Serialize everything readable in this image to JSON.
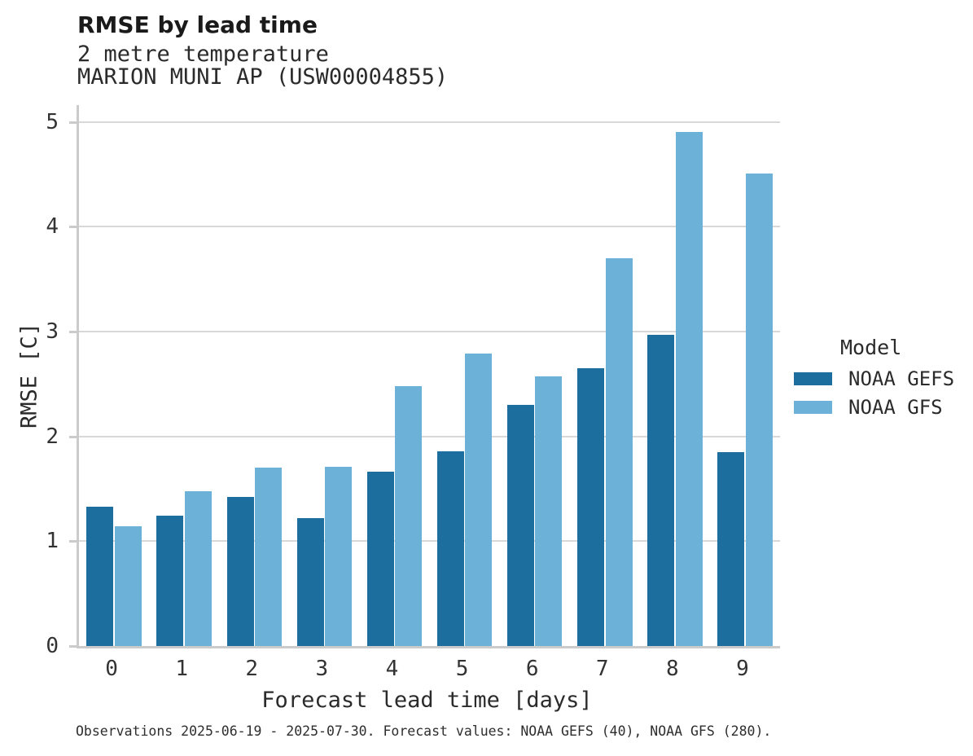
{
  "header": {
    "title": "RMSE by lead time",
    "subtitle_line1": "2 metre temperature",
    "subtitle_line2": "MARION MUNI AP (USW00004855)"
  },
  "chart_data": {
    "type": "bar",
    "title": "RMSE by lead time",
    "subtitle": [
      "2 metre temperature",
      "MARION MUNI AP (USW00004855)"
    ],
    "categories": [
      "0",
      "1",
      "2",
      "3",
      "4",
      "5",
      "6",
      "7",
      "8",
      "9"
    ],
    "series": [
      {
        "name": "NOAA GEFS",
        "color": "#1b6e9e",
        "values": [
          1.33,
          1.24,
          1.42,
          1.22,
          1.66,
          1.86,
          2.3,
          2.65,
          2.97,
          1.85
        ]
      },
      {
        "name": "NOAA GFS",
        "color": "#6cb1d8",
        "values": [
          1.14,
          1.48,
          1.7,
          1.71,
          2.48,
          2.79,
          2.57,
          3.7,
          4.9,
          4.51
        ]
      }
    ],
    "xlabel": "Forecast lead time [days]",
    "ylabel": "RMSE [C]",
    "ylim": [
      0,
      5.16
    ],
    "yticks": [
      0,
      1,
      2,
      3,
      4,
      5
    ],
    "grid": "horizontal",
    "legend_position": "right"
  },
  "legend": {
    "title": "Model",
    "entries": [
      {
        "label": "NOAA GEFS",
        "color": "#1b6e9e"
      },
      {
        "label": "NOAA GFS",
        "color": "#6cb1d8"
      }
    ]
  },
  "footer": {
    "note": "Observations 2025-06-19 - 2025-07-30. Forecast values: NOAA GEFS (40), NOAA GFS (280)."
  },
  "colors": {
    "gefs_dark_blue": "#1b6e9e",
    "gfs_light_blue": "#6cb1d8",
    "gridline": "#d8d8d8",
    "axis_spine": "#cbcbcb",
    "text": "#2b2b2b",
    "background": "#ffffff"
  }
}
